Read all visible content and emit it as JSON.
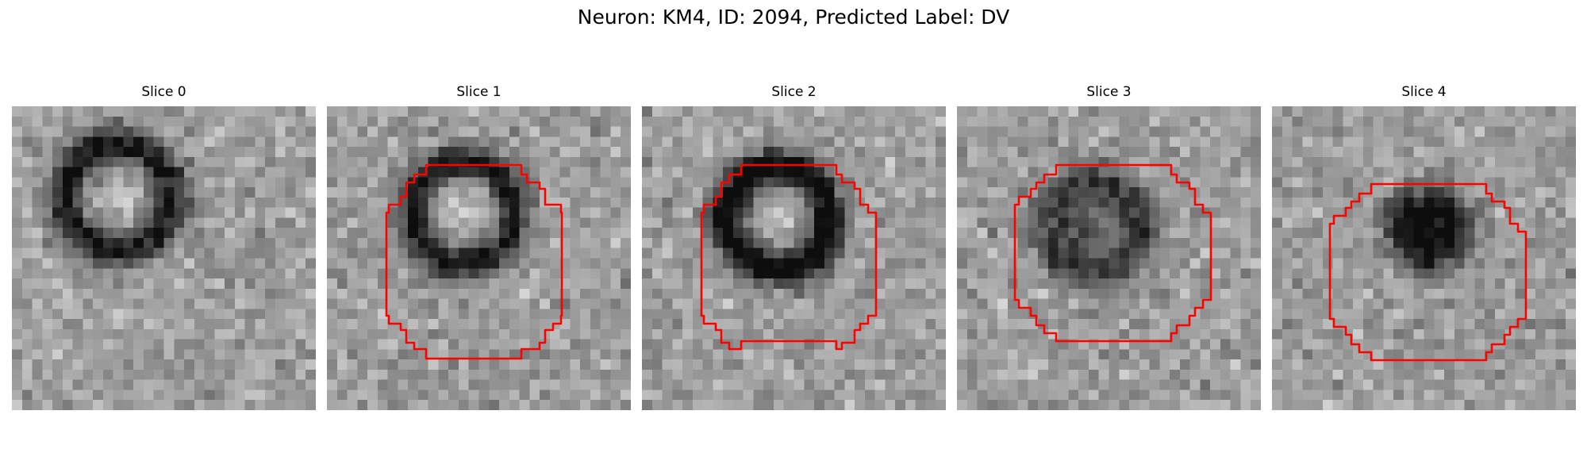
{
  "figure": {
    "title": "Neuron: KM4, ID: 2094, Predicted Label: DV",
    "contour_color": "#ff0000",
    "colormap": "gray"
  },
  "panels": [
    {
      "title": "Slice 0",
      "has_contour": false
    },
    {
      "title": "Slice 1",
      "has_contour": true
    },
    {
      "title": "Slice 2",
      "has_contour": true
    },
    {
      "title": "Slice 3",
      "has_contour": true
    },
    {
      "title": "Slice 4",
      "has_contour": true
    }
  ]
}
